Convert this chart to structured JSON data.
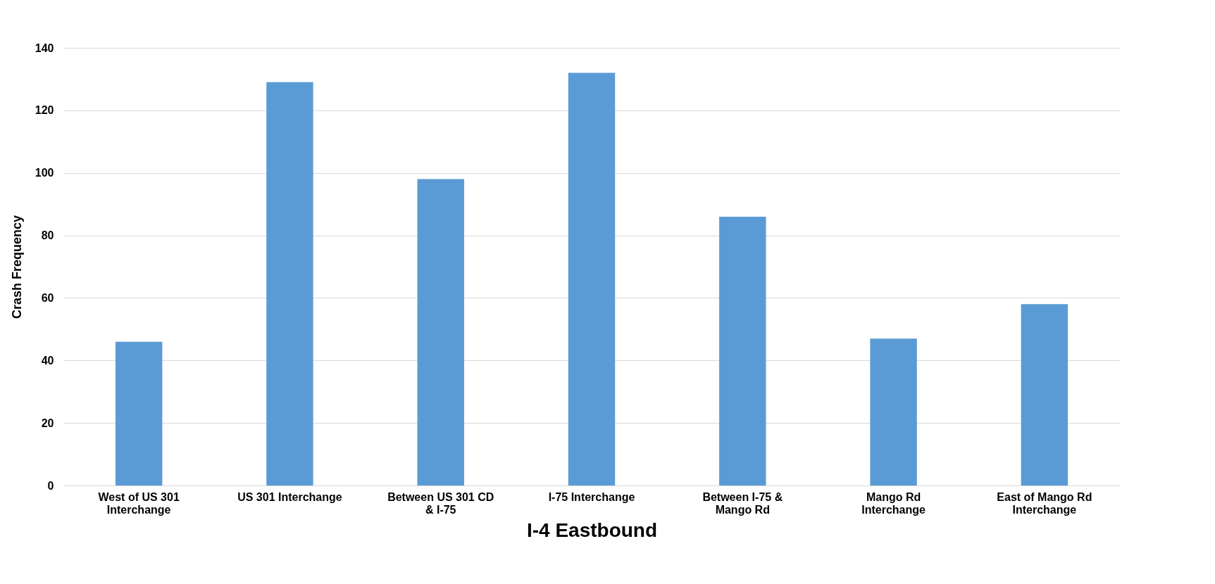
{
  "chart_data": {
    "type": "bar",
    "xlabel": "I-4 Eastbound",
    "ylabel": "Crash Frequency",
    "categories": [
      "West of US 301 Interchange",
      "US 301 Interchange",
      "Between US 301 CD & I-75",
      "I-75 Interchange",
      "Between I-75 & Mango Rd",
      "Mango Rd Interchange",
      "East of Mango Rd Interchange"
    ],
    "values": [
      46,
      129,
      98,
      132,
      86,
      47,
      58
    ],
    "color": "#5b9bd5",
    "ylim": [
      0,
      140
    ],
    "yticks": [
      0,
      20,
      40,
      60,
      80,
      100,
      120,
      140
    ],
    "grid": "y"
  }
}
